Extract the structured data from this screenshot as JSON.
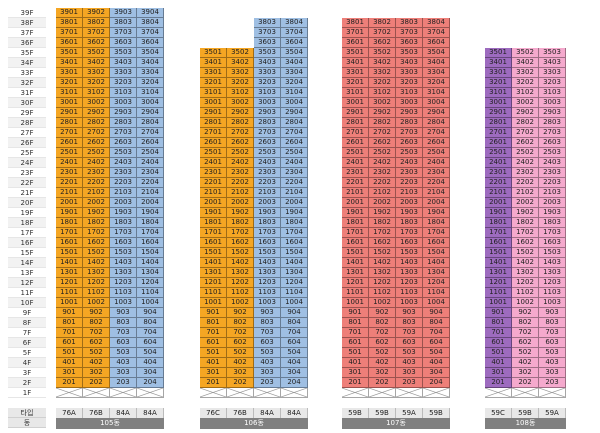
{
  "floor_labels": [
    "39F",
    "38F",
    "37F",
    "36F",
    "35F",
    "34F",
    "33F",
    "32F",
    "31F",
    "30F",
    "29F",
    "28F",
    "27F",
    "26F",
    "25F",
    "24F",
    "23F",
    "22F",
    "21F",
    "20F",
    "19F",
    "18F",
    "17F",
    "16F",
    "15F",
    "14F",
    "13F",
    "12F",
    "11F",
    "10F",
    "9F",
    "8F",
    "7F",
    "6F",
    "5F",
    "4F",
    "3F",
    "2F",
    "1F"
  ],
  "meta_labels": {
    "type": "타입",
    "building": "동"
  },
  "colors": {
    "orange": "#f5a623",
    "blue": "#9fbfe3",
    "red": "#ee7f79",
    "purple": "#9d6bbf",
    "pink": "#f5a9cd"
  },
  "buildings": [
    {
      "name": "105동",
      "columns": [
        {
          "line": "01",
          "type": "76A",
          "color": "orange",
          "top_floor": 39
        },
        {
          "line": "02",
          "type": "76B",
          "color": "orange",
          "top_floor": 39
        },
        {
          "line": "03",
          "type": "84A",
          "color": "blue",
          "top_floor": 39
        },
        {
          "line": "04",
          "type": "84A",
          "color": "blue",
          "top_floor": 39
        }
      ]
    },
    {
      "name": "106동",
      "columns": [
        {
          "line": "01",
          "type": "76C",
          "color": "orange",
          "top_floor": 35
        },
        {
          "line": "02",
          "type": "76B",
          "color": "orange",
          "top_floor": 35
        },
        {
          "line": "03",
          "type": "84A",
          "color": "blue",
          "top_floor": 38
        },
        {
          "line": "04",
          "type": "84A",
          "color": "blue",
          "top_floor": 38
        }
      ]
    },
    {
      "name": "107동",
      "columns": [
        {
          "line": "01",
          "type": "59B",
          "color": "red",
          "top_floor": 38
        },
        {
          "line": "02",
          "type": "59B",
          "color": "red",
          "top_floor": 38
        },
        {
          "line": "03",
          "type": "59A",
          "color": "red",
          "top_floor": 38
        },
        {
          "line": "04",
          "type": "59B",
          "color": "red",
          "top_floor": 38
        }
      ]
    },
    {
      "name": "108동",
      "columns": [
        {
          "line": "01",
          "type": "59C",
          "color": "purple",
          "top_floor": 35
        },
        {
          "line": "02",
          "type": "59B",
          "color": "pink",
          "top_floor": 35
        },
        {
          "line": "03",
          "type": "59A",
          "color": "pink",
          "top_floor": 35
        }
      ]
    }
  ],
  "empty_floors": [
    1
  ],
  "bottom_unit_floor": 2
}
